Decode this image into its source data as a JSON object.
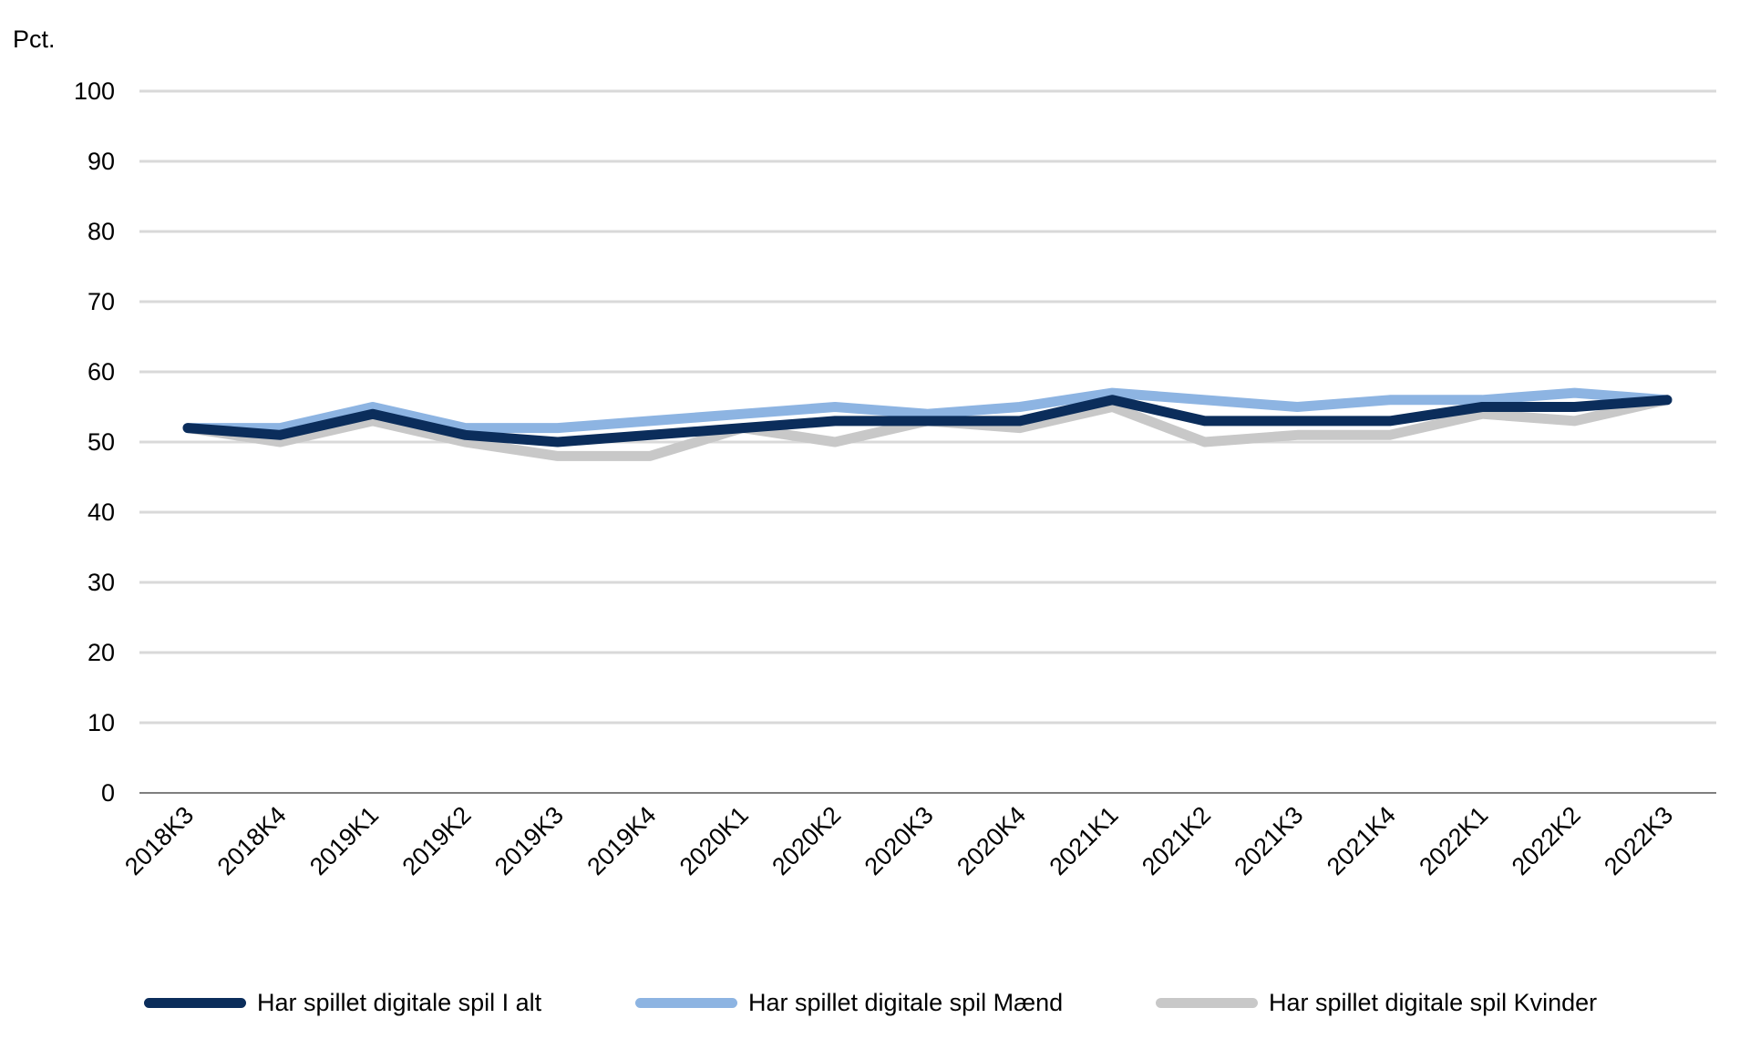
{
  "chart_data": {
    "type": "line",
    "unit_label": "Pct.",
    "categories": [
      "2018K3",
      "2018K4",
      "2019K1",
      "2019K2",
      "2019K3",
      "2019K4",
      "2020K1",
      "2020K2",
      "2020K3",
      "2020K4",
      "2021K1",
      "2021K2",
      "2021K3",
      "2021K4",
      "2022K1",
      "2022K2",
      "2022K3"
    ],
    "ylim": [
      0,
      100
    ],
    "yticks": [
      0,
      10,
      20,
      30,
      40,
      50,
      60,
      70,
      80,
      90,
      100
    ],
    "grid": true,
    "legend_position": "bottom",
    "series": [
      {
        "name": "Har spillet digitale spil I alt",
        "color": "#0b2d5b",
        "values": [
          52,
          51,
          54,
          51,
          50,
          51,
          52,
          53,
          53,
          53,
          56,
          53,
          53,
          53,
          55,
          55,
          56
        ]
      },
      {
        "name": "Har spillet digitale spil Mænd",
        "color": "#8db4e2",
        "values": [
          52,
          52,
          55,
          52,
          52,
          53,
          54,
          55,
          54,
          55,
          57,
          56,
          55,
          56,
          56,
          57,
          56
        ]
      },
      {
        "name": "Har spillet digitale spil Kvinder",
        "color": "#c8c8c8",
        "values": [
          52,
          50,
          53,
          50,
          48,
          48,
          52,
          50,
          53,
          52,
          55,
          50,
          51,
          51,
          54,
          53,
          56
        ]
      }
    ]
  }
}
